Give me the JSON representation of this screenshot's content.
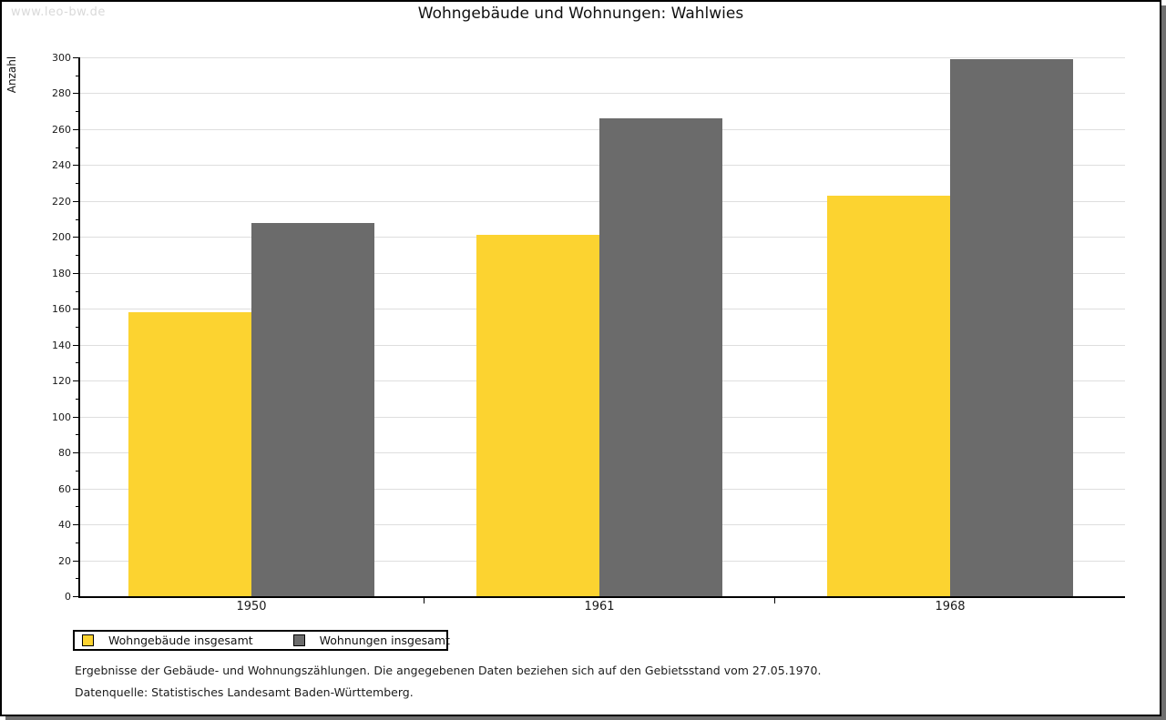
{
  "watermark": "www.leo-bw.de",
  "title": "Wohngebäude und Wohnungen: Wahlwies",
  "chart_data": {
    "type": "bar",
    "title": "Wohngebäude und Wohnungen: Wahlwies",
    "categories": [
      "1950",
      "1961",
      "1968"
    ],
    "series": [
      {
        "name": "Wohngebäude insgesamt",
        "color": "#fcd330",
        "values": [
          158,
          201,
          223
        ]
      },
      {
        "name": "Wohnungen insgesamt",
        "color": "#6b6b6b",
        "values": [
          208,
          266,
          299
        ]
      }
    ],
    "xlabel": "",
    "ylabel": "Anzahl",
    "ylim": [
      0,
      300
    ],
    "ytick_step": 20,
    "yminor_step": 10,
    "grid": true,
    "legend_position": "bottom-left"
  },
  "footnotes": {
    "line1": "Ergebnisse der Gebäude- und Wohnungszählungen. Die angegebenen Daten beziehen sich auf den Gebietsstand vom 27.05.1970.",
    "line2": "Datenquelle: Statistisches Landesamt Baden-Württemberg."
  },
  "colors": {
    "series_1": "#fcd330",
    "series_2": "#6b6b6b",
    "gridline": "#dedede",
    "axis": "#000000",
    "watermark": "#d9d9d9",
    "page_border": "#000000",
    "page_shadow": "#6f6f6f",
    "background": "#ffffff"
  }
}
